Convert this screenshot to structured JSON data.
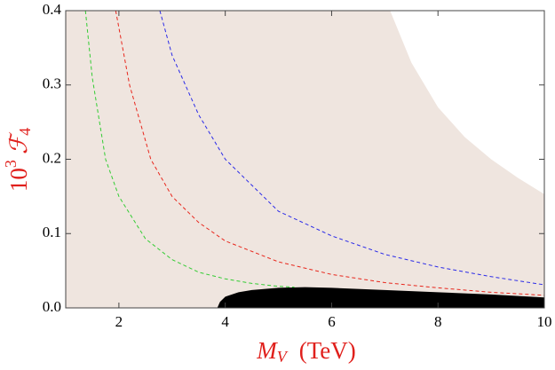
{
  "chart_data": {
    "type": "region",
    "xlabel": [
      "M",
      "V",
      "(TeV)"
    ],
    "ylabel": [
      "10",
      "3",
      "ℱ",
      "4"
    ],
    "label_color": "#e0201c",
    "xlim": [
      1,
      10
    ],
    "xticks": [
      2,
      4,
      6,
      8,
      10
    ],
    "ylim": [
      0,
      0.4
    ],
    "yticks": [
      {
        "value": 0,
        "label": "0.0"
      },
      0.1,
      0.2,
      0.3,
      0.4
    ],
    "series": [
      {
        "style": "fill",
        "color": "#efe5df",
        "x": [
          7.1,
          7.5,
          8,
          8.5,
          9,
          9.5,
          10
        ],
        "values": [
          0.4,
          0.33,
          0.27,
          0.23,
          0.2,
          0.175,
          0.153
        ]
      },
      {
        "style": "fill",
        "color": "#000000",
        "x": [
          3.85,
          3.9,
          4,
          4.25,
          4.5,
          5,
          5.5,
          6,
          7,
          8,
          9,
          10
        ],
        "values": [
          0,
          0.008,
          0.015,
          0.021,
          0.024,
          0.027,
          0.028,
          0.027,
          0.024,
          0.021,
          0.018,
          0.014
        ]
      },
      {
        "style": "dashed",
        "color": "#33cc33",
        "x": [
          1.37,
          1.5,
          1.75,
          2,
          2.5,
          3,
          3.5,
          4,
          4.5,
          5,
          5.3
        ],
        "values": [
          0.4,
          0.31,
          0.2,
          0.15,
          0.093,
          0.065,
          0.048,
          0.039,
          0.033,
          0.029,
          0.028
        ]
      },
      {
        "style": "dashed",
        "color": "#e8261c",
        "x": [
          1.94,
          2.2,
          2.6,
          3,
          3.5,
          4,
          5,
          6,
          7,
          8,
          9,
          10
        ],
        "values": [
          0.4,
          0.3,
          0.2,
          0.15,
          0.115,
          0.09,
          0.062,
          0.045,
          0.034,
          0.027,
          0.021,
          0.017
        ]
      },
      {
        "style": "dashed",
        "color": "#2a2ae8",
        "x": [
          2.77,
          3,
          3.5,
          4,
          5,
          6,
          7,
          8,
          9,
          10
        ],
        "values": [
          0.4,
          0.34,
          0.26,
          0.2,
          0.13,
          0.097,
          0.072,
          0.055,
          0.042,
          0.031
        ]
      }
    ]
  }
}
